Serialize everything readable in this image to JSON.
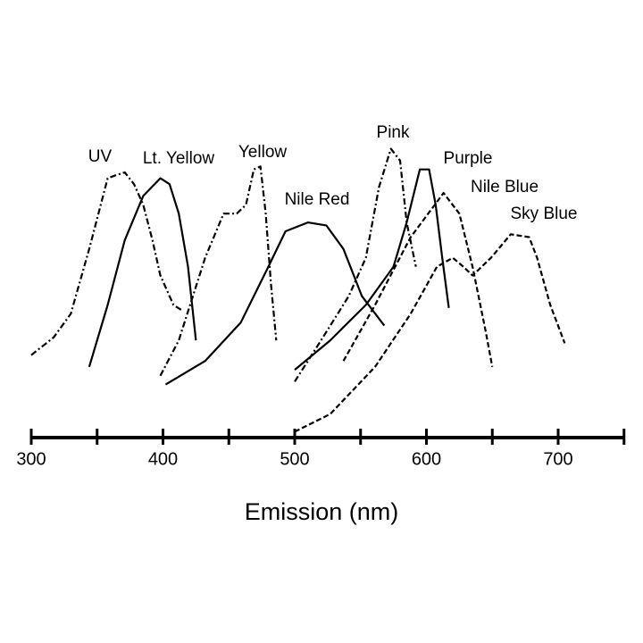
{
  "chart_data": {
    "type": "line",
    "x_label": "Emission (nm)",
    "xlim": [
      300,
      750
    ],
    "ylim": [
      0,
      100
    ],
    "xticks": [
      300,
      400,
      500,
      600,
      700
    ],
    "xminor_ticks": [
      350,
      450,
      550,
      650,
      750
    ],
    "series": [
      {
        "name": "UV",
        "color": "#000000",
        "style": "dashdot",
        "x": [
          300,
          317,
          330,
          344,
          351,
          358,
          364,
          371,
          378,
          385,
          392,
          398,
          408,
          415
        ],
        "values": [
          28,
          34,
          42,
          64,
          76,
          88,
          89,
          90,
          86,
          79,
          67,
          55,
          45,
          43
        ]
      },
      {
        "name": "Lt. Yellow",
        "color": "#000000",
        "style": "solid",
        "x": [
          344,
          358,
          371,
          385,
          398,
          405,
          412,
          419,
          425
        ],
        "values": [
          24,
          45,
          67,
          82,
          88,
          86,
          76,
          58,
          33
        ]
      },
      {
        "name": "Yellow",
        "color": "#000000",
        "style": "dashdot",
        "x": [
          398,
          412,
          432,
          446,
          456,
          463,
          469,
          474,
          478,
          482,
          486
        ],
        "values": [
          21,
          33,
          61,
          76,
          76,
          79,
          91,
          92,
          76,
          52,
          33
        ]
      },
      {
        "name": "Nile Red",
        "color": "#000000",
        "style": "solid",
        "x": [
          402,
          432,
          459,
          480,
          493,
          510,
          524,
          537,
          551,
          568
        ],
        "values": [
          18,
          26,
          39,
          58,
          70,
          73,
          72,
          64,
          48,
          38
        ]
      },
      {
        "name": "Pink",
        "color": "#000000",
        "style": "dashdot",
        "x": [
          500,
          520,
          541,
          554,
          564,
          573,
          580,
          585,
          592
        ],
        "values": [
          19,
          33,
          48,
          61,
          85,
          98,
          94,
          73,
          58
        ]
      },
      {
        "name": "Purple",
        "color": "#000000",
        "style": "solid",
        "x": [
          500,
          527,
          554,
          575,
          585,
          595,
          602,
          607,
          612,
          617
        ],
        "values": [
          23,
          33,
          45,
          58,
          73,
          91,
          91,
          79,
          61,
          44
        ]
      },
      {
        "name": "Nile Blue",
        "color": "#000000",
        "style": "dashed",
        "x": [
          537,
          561,
          588,
          613,
          625,
          635,
          645,
          650
        ],
        "values": [
          26,
          45,
          68,
          83,
          76,
          58,
          36,
          24
        ]
      },
      {
        "name": "Sky Blue",
        "color": "#000000",
        "style": "dashed",
        "x": [
          500,
          527,
          561,
          588,
          608,
          620,
          628,
          635,
          649,
          664,
          678,
          684,
          694,
          705
        ],
        "values": [
          2,
          8,
          24,
          42,
          58,
          61,
          58,
          55,
          61,
          69,
          68,
          61,
          45,
          32
        ]
      }
    ]
  }
}
